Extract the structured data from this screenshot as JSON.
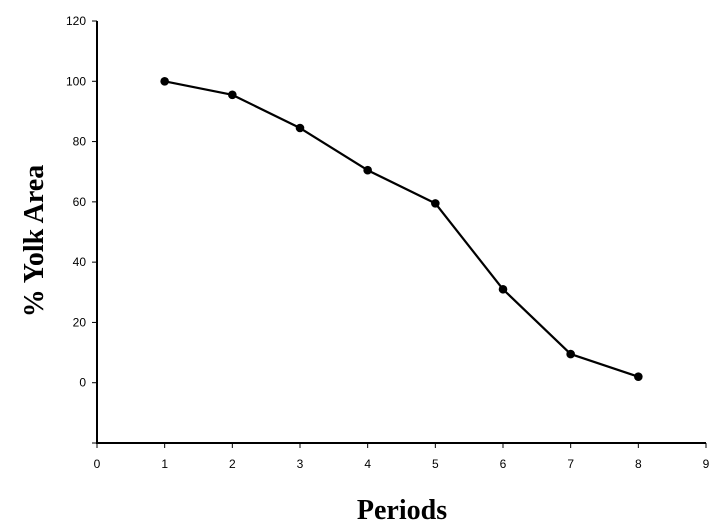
{
  "chart_data": {
    "type": "line",
    "title": "",
    "xlabel": "Periods",
    "ylabel": "% Yolk Area",
    "xlim": [
      0,
      9
    ],
    "ylim": [
      -20,
      120
    ],
    "xticks": [
      "0",
      "1",
      "2",
      "3",
      "4",
      "5",
      "6",
      "7",
      "8",
      "9"
    ],
    "yticks": [
      "120",
      "100",
      "80",
      "60",
      "40",
      "20",
      "0"
    ],
    "grid": false,
    "legend": "none",
    "series": [
      {
        "x": [
          1,
          2,
          3,
          4,
          5,
          6,
          7,
          8
        ],
        "values": [
          100,
          95.5,
          84.5,
          70.5,
          59.5,
          31,
          9.5,
          2
        ],
        "color": "#000000"
      }
    ]
  }
}
